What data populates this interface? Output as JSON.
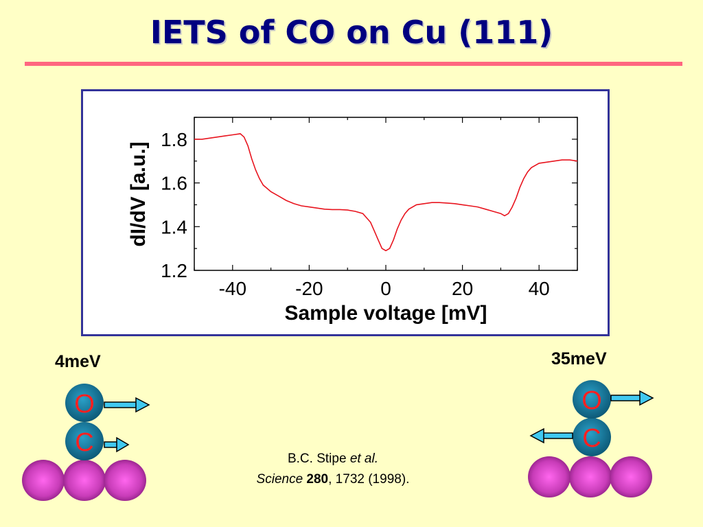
{
  "title": "IETS of CO on Cu (111)",
  "chart_data": {
    "type": "line",
    "title": "",
    "xlabel": "Sample voltage [mV]",
    "ylabel": "dI/dV [a.u.]",
    "xlim": [
      -50,
      50
    ],
    "ylim": [
      1.2,
      1.9
    ],
    "xticks": [
      -40,
      -20,
      0,
      20,
      40
    ],
    "yticks": [
      1.2,
      1.4,
      1.6,
      1.8
    ],
    "xtick_labels": [
      "-40",
      "-20",
      "0",
      "20",
      "40"
    ],
    "ytick_labels": [
      "1.2",
      "1.4",
      "1.6",
      "1.8"
    ],
    "grid": false,
    "color": "#e8141e",
    "series": [
      {
        "x": [
          -50,
          -48,
          -46,
          -44,
          -42,
          -40,
          -38,
          -37,
          -36,
          -35,
          -34,
          -33,
          -32,
          -31,
          -30,
          -28,
          -26,
          -24,
          -22,
          -20,
          -18,
          -16,
          -14,
          -12,
          -10,
          -8,
          -6,
          -4,
          -3,
          -2,
          -1,
          0,
          1,
          2,
          3,
          4,
          5,
          6,
          8,
          10,
          12,
          14,
          16,
          18,
          20,
          22,
          24,
          26,
          28,
          30,
          31,
          32,
          33,
          34,
          35,
          36,
          37,
          38,
          40,
          42,
          44,
          46,
          48,
          50
        ],
        "y": [
          1.8,
          1.8,
          1.805,
          1.81,
          1.815,
          1.82,
          1.825,
          1.81,
          1.77,
          1.71,
          1.66,
          1.62,
          1.59,
          1.575,
          1.56,
          1.54,
          1.52,
          1.505,
          1.495,
          1.49,
          1.485,
          1.48,
          1.478,
          1.478,
          1.476,
          1.47,
          1.46,
          1.42,
          1.38,
          1.34,
          1.3,
          1.29,
          1.3,
          1.34,
          1.39,
          1.43,
          1.46,
          1.48,
          1.5,
          1.505,
          1.51,
          1.51,
          1.508,
          1.505,
          1.5,
          1.495,
          1.49,
          1.48,
          1.47,
          1.46,
          1.45,
          1.46,
          1.49,
          1.53,
          1.58,
          1.62,
          1.65,
          1.67,
          1.69,
          1.695,
          1.7,
          1.705,
          1.705,
          1.7
        ]
      }
    ]
  },
  "modes": [
    {
      "energy": "4meV",
      "top_atom": "O",
      "bottom_atom": "C"
    },
    {
      "energy": "35meV",
      "top_atom": "O",
      "bottom_atom": "C"
    }
  ],
  "citation": {
    "author": "B.C. Stipe",
    "etal": "et al.",
    "journal": "Science",
    "volume": "280",
    "rest": ", 1732 (1998)."
  },
  "colors": {
    "background": "#ffffc6",
    "title": "#000080",
    "rule": "#ff6680",
    "frame_border": "#333399",
    "curve": "#e8141e",
    "molecule": "#1e7fa0",
    "atom_letter": "#ff2020",
    "arrow": "#40c8f0",
    "surface_atom": "#c040b0"
  }
}
